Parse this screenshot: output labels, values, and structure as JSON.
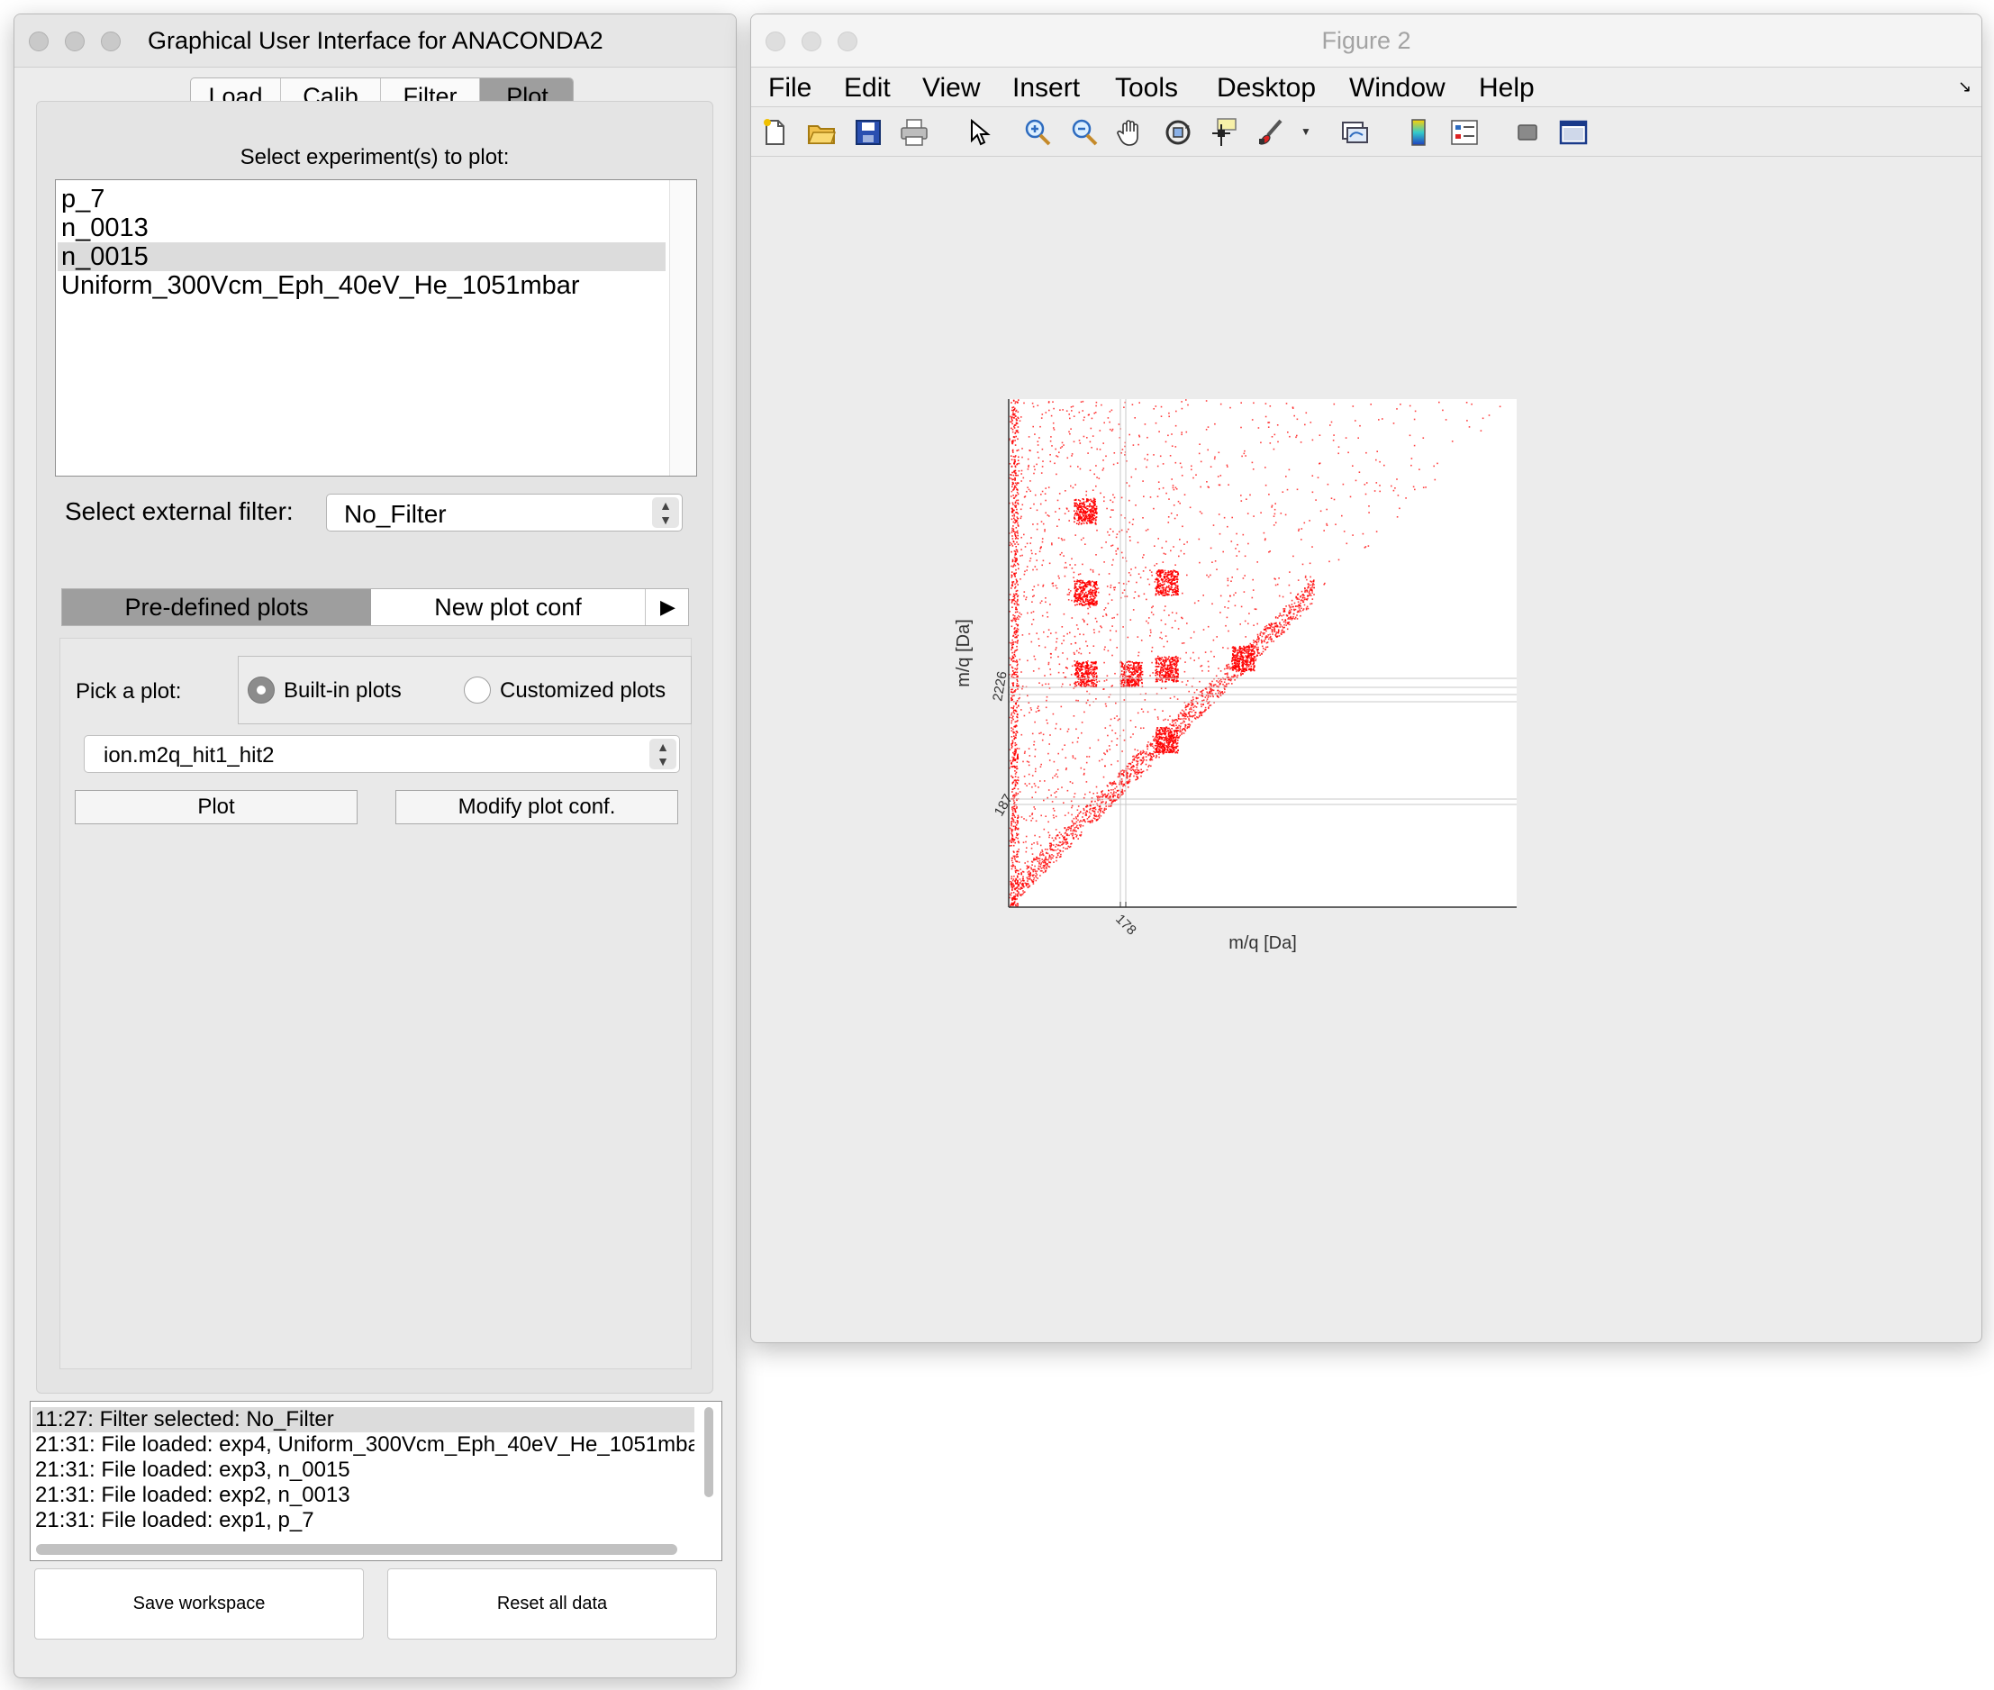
{
  "left_window": {
    "title": "Graphical User Interface for ANACONDA2",
    "tabs": [
      "Load",
      "Calib",
      "Filter",
      "Plot"
    ],
    "active_tab": "Plot",
    "select_experiments_label": "Select experiment(s) to plot:",
    "experiments": [
      "p_7",
      "n_0013",
      "n_0015",
      "Uniform_300Vcm_Eph_40eV_He_1051mbar"
    ],
    "selected_experiment": "n_0015",
    "external_filter_label": "Select external filter:",
    "external_filter_value": "No_Filter",
    "subtabs": [
      "Pre-defined plots",
      "New plot conf"
    ],
    "active_subtab": "Pre-defined plots",
    "subtab_arrow": "▶",
    "pick_plot_label": "Pick a plot:",
    "radio_builtin": "Built-in plots",
    "radio_customized": "Customized plots",
    "radio_selected": "Built-in plots",
    "plot_select_value": "ion.m2q_hit1_hit2",
    "plot_button": "Plot",
    "modify_button": "Modify plot conf.",
    "log_lines": [
      "11:27: Filter selected: No_Filter",
      "21:31: File loaded: exp4, Uniform_300Vcm_Eph_40eV_He_1051mba",
      "21:31: File loaded: exp3, n_0015",
      "21:31: File loaded: exp2, n_0013",
      "21:31: File loaded: exp1, p_7"
    ],
    "save_workspace": "Save workspace",
    "reset_all_data": "Reset all data"
  },
  "figure_window": {
    "title": "Figure 2",
    "menu": [
      "File",
      "Edit",
      "View",
      "Insert",
      "Tools",
      "Desktop",
      "Window",
      "Help"
    ],
    "toolbar_icons": [
      "new-figure-icon",
      "open-file-icon",
      "save-icon",
      "print-icon",
      "pointer-icon",
      "zoom-in-icon",
      "zoom-out-icon",
      "pan-hand-icon",
      "rotate-3d-icon",
      "data-cursor-icon",
      "brush-icon",
      "brush-dropdown-icon",
      "link-plot-icon",
      "colorbar-icon",
      "legend-icon",
      "hide-plot-tools-icon",
      "show-plot-tools-icon"
    ],
    "accent_color": "#ff0000"
  },
  "chart_data": {
    "type": "scatter",
    "xlabel": "m/q [Da]",
    "ylabel": "m/q [Da]",
    "x_tick_labels": [
      "178"
    ],
    "y_tick_labels": [
      "187",
      "2226"
    ],
    "point_color": "#ff0000",
    "dense_regions": [
      {
        "x": 0.15,
        "y": 0.78
      },
      {
        "x": 0.15,
        "y": 0.62
      },
      {
        "x": 0.15,
        "y": 0.46
      },
      {
        "x": 0.24,
        "y": 0.46
      },
      {
        "x": 0.31,
        "y": 0.64
      },
      {
        "x": 0.31,
        "y": 0.47
      },
      {
        "x": 0.31,
        "y": 0.33
      },
      {
        "x": 0.46,
        "y": 0.49
      }
    ],
    "grid": false
  }
}
